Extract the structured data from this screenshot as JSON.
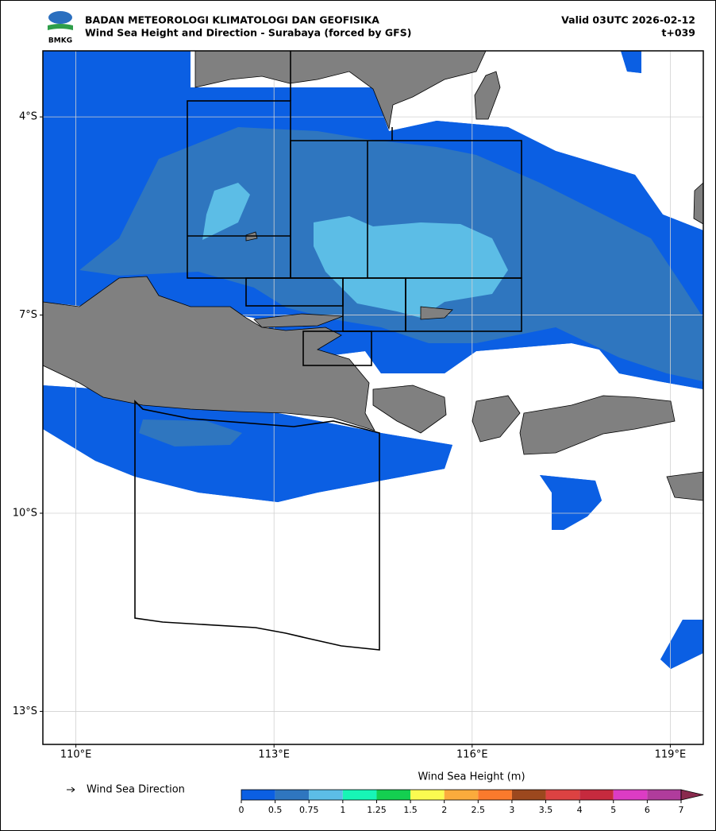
{
  "header": {
    "logo_text": "BMKG",
    "title": "BADAN METEOROLOGI KLIMATOLOGI DAN GEOFISIKA",
    "subtitle": "Wind Sea Height and Direction - Surabaya (forced by GFS)",
    "valid": "Valid 03UTC 2026-02-12",
    "lead": "t+039"
  },
  "map": {
    "xlim": [
      109.5,
      119.5
    ],
    "ylim": [
      -13.5,
      -3.0
    ],
    "xticks": [
      {
        "value": 110,
        "label": "110°E"
      },
      {
        "value": 113,
        "label": "113°E"
      },
      {
        "value": 116,
        "label": "116°E"
      },
      {
        "value": 119,
        "label": "119°E"
      }
    ],
    "yticks": [
      {
        "value": -4,
        "label": "4°S"
      },
      {
        "value": -7,
        "label": "7°S"
      },
      {
        "value": -10,
        "label": "10°S"
      },
      {
        "value": -13,
        "label": "13°S"
      }
    ],
    "grid": true,
    "legend": {
      "label": "Wind Sea Direction"
    },
    "colorbar": {
      "title": "Wind Sea Height (m)",
      "boundaries": [
        0,
        0.5,
        0.75,
        1,
        1.25,
        1.5,
        2,
        2.5,
        3,
        3.5,
        4,
        5,
        6,
        7
      ],
      "colors": [
        "#0b5fe3",
        "#2f76bf",
        "#5cbde6",
        "#17f5b6",
        "#14cf50",
        "#fbfb50",
        "#fbab3c",
        "#fb7a2c",
        "#9c481e",
        "#dc4242",
        "#c62a3e",
        "#dc3cc4",
        "#b03c9c"
      ],
      "extend_color": "#8a2a4e"
    }
  }
}
